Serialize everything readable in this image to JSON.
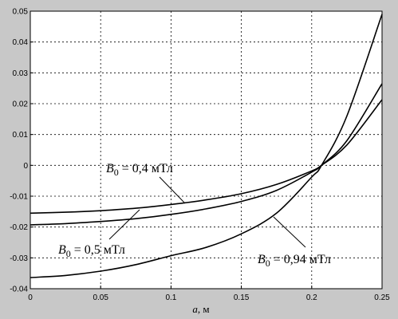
{
  "chart_data": {
    "type": "line",
    "xlabel_var": "a",
    "xlabel_unit": ", м",
    "ylabel": "",
    "xlim": [
      0,
      0.25
    ],
    "ylim": [
      -0.04,
      0.05
    ],
    "x_ticks": [
      0,
      0.05,
      0.1,
      0.15,
      0.2,
      0.25
    ],
    "x_tick_labels": [
      "0",
      "0.05",
      "0.1",
      "0.15",
      "0.2",
      "0.25"
    ],
    "y_ticks": [
      -0.04,
      -0.03,
      -0.02,
      -0.01,
      0,
      0.01,
      0.02,
      0.03,
      0.04,
      0.05
    ],
    "y_tick_labels": [
      "-0.04",
      "-0.03",
      "-0.02",
      "-0.01",
      "0",
      "0.01",
      "0.02",
      "0.03",
      "0.04",
      "0.05"
    ],
    "grid": true,
    "line_color": "#000000",
    "background_color": "#c8c8c8",
    "plot_background": "#ffffff",
    "series": [
      {
        "name": "B0 = 0,4 мТл",
        "x": [
          0,
          0.025,
          0.05,
          0.075,
          0.1,
          0.125,
          0.15,
          0.175,
          0.2,
          0.207,
          0.225,
          0.25
        ],
        "y": [
          -0.0155,
          -0.0152,
          -0.0147,
          -0.0139,
          -0.0127,
          -0.0112,
          -0.0092,
          -0.0062,
          -0.0018,
          0,
          0.0066,
          0.0213
        ]
      },
      {
        "name": "B0 = 0,5 мТл",
        "x": [
          0,
          0.025,
          0.05,
          0.075,
          0.1,
          0.125,
          0.15,
          0.175,
          0.2,
          0.207,
          0.225,
          0.25
        ],
        "y": [
          -0.0193,
          -0.0189,
          -0.0182,
          -0.0173,
          -0.0159,
          -0.0141,
          -0.0117,
          -0.0081,
          -0.0022,
          0,
          0.008,
          0.0265
        ]
      },
      {
        "name": "B0 = 0,94 мТл",
        "x": [
          0,
          0.025,
          0.05,
          0.075,
          0.1,
          0.125,
          0.15,
          0.175,
          0.2,
          0.207,
          0.225,
          0.25
        ],
        "y": [
          -0.0364,
          -0.0357,
          -0.0343,
          -0.0322,
          -0.0293,
          -0.0266,
          -0.0222,
          -0.0155,
          -0.0038,
          0,
          0.016,
          0.049
        ]
      }
    ],
    "annotations": [
      {
        "base": "B",
        "sub": "0",
        "rest": " = 0,4 мТл"
      },
      {
        "base": "B",
        "sub": "0",
        "rest": " = 0,5 мТл"
      },
      {
        "base": "B",
        "sub": "0",
        "rest": " = 0,94 мТл"
      }
    ]
  }
}
